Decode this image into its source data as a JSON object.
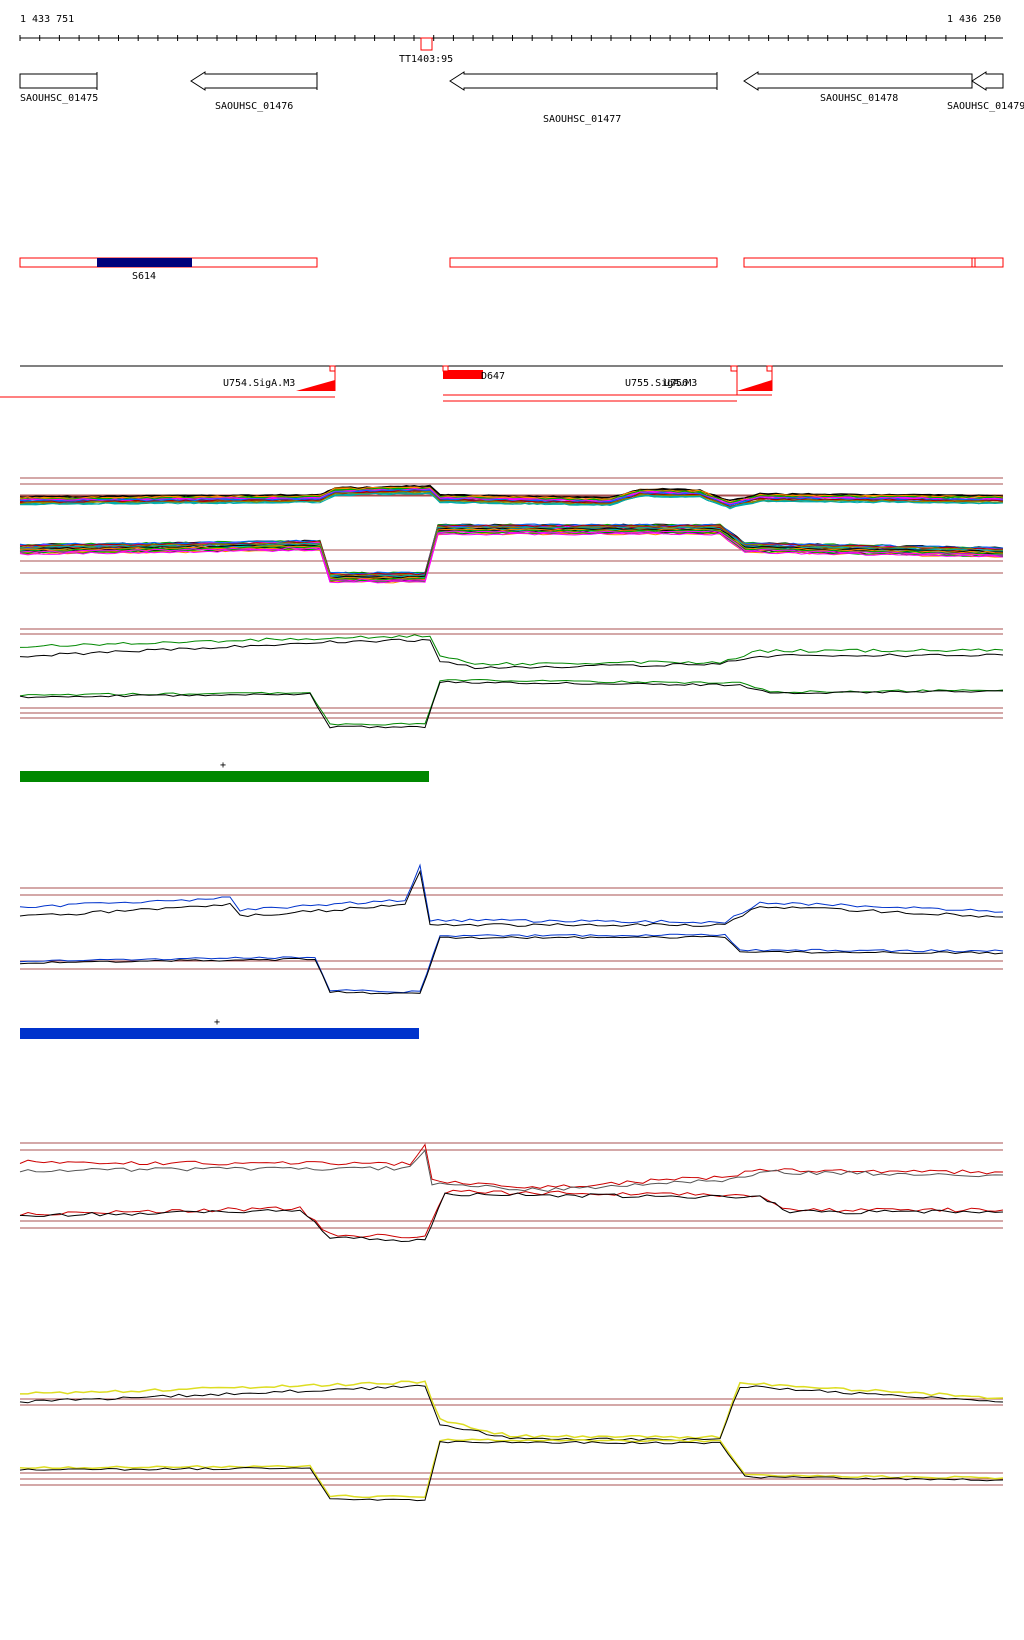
{
  "coords": {
    "start": "1 433 751",
    "end": "1 436 250"
  },
  "terminator": {
    "label": "TT1403:95"
  },
  "genes": [
    {
      "label": "SAOUHSC_01475",
      "direction": "right"
    },
    {
      "label": "SAOUHSC_01476",
      "direction": "left"
    },
    {
      "label": "SAOUHSC_01477",
      "direction": "left"
    },
    {
      "label": "SAOUHSC_01478",
      "direction": "left"
    },
    {
      "label": "SAOUHSC_01479",
      "direction": "left"
    }
  ],
  "segments": {
    "highlight_label": "S614",
    "highlight_color": "#00007b"
  },
  "transcripts": {
    "labels": [
      "U754.SigA.M3",
      "D647",
      "U755.SigA.M3",
      "U756"
    ],
    "color": "#ff0000"
  },
  "tracks": [
    {
      "id": "all-conditions",
      "colors": [
        "#000000",
        "#ff8800",
        "#00aa00",
        "#ff00ff",
        "#0066ff",
        "#aa0000",
        "#888800",
        "#00aaaa"
      ]
    },
    {
      "id": "green",
      "color": "#008800",
      "bar_label": "+",
      "bar_color": "#008800"
    },
    {
      "id": "blue",
      "color": "#0033cc",
      "bar_label": "+",
      "bar_color": "#0033cc"
    },
    {
      "id": "red",
      "color": "#cc0000"
    },
    {
      "id": "yellow",
      "color": "#dddd22"
    }
  ],
  "guide_color": "#a85050"
}
